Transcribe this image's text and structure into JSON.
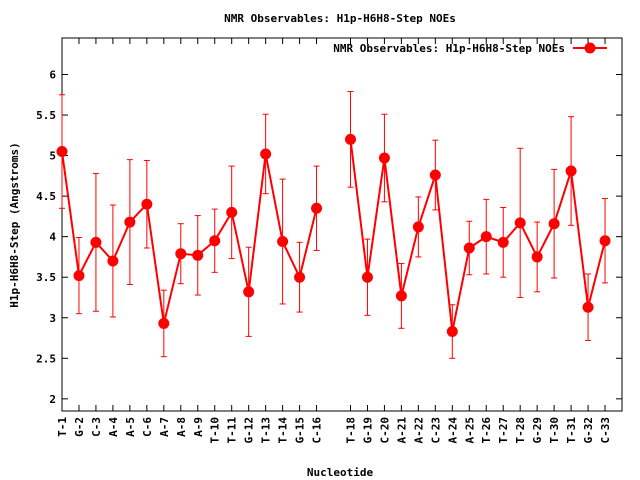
{
  "chart_data": {
    "type": "line",
    "title": "NMR Observables: H1p-H6H8-Step NOEs",
    "xlabel": "Nucleotide",
    "ylabel": "H1p-H6H8-Step (Angstroms)",
    "ylim": [
      1.85,
      6.45
    ],
    "yticks": [
      2,
      2.5,
      3,
      3.5,
      4,
      4.5,
      5,
      5.5,
      6
    ],
    "ytick_labels": [
      "2",
      "2.5",
      "3",
      "3.5",
      "4",
      "4.5",
      "5",
      "5.5",
      "6"
    ],
    "xlim": [
      1,
      34
    ],
    "grid": false,
    "legend_position": "top-right",
    "series_color": "#ff0000",
    "series": [
      {
        "name": "NMR Observables: H1p-H6H8-Step NOEs",
        "segments": [
          [
            {
              "x": 1,
              "label": "T-1",
              "y": 5.05,
              "err": 0.7
            },
            {
              "x": 2,
              "label": "G-2",
              "y": 3.52,
              "err": 0.47
            },
            {
              "x": 3,
              "label": "C-3",
              "y": 3.93,
              "err": 0.85
            },
            {
              "x": 4,
              "label": "A-4",
              "y": 3.7,
              "err": 0.69
            },
            {
              "x": 5,
              "label": "A-5",
              "y": 4.18,
              "err": 0.77
            },
            {
              "x": 6,
              "label": "C-6",
              "y": 4.4,
              "err": 0.54
            },
            {
              "x": 7,
              "label": "A-7",
              "y": 2.93,
              "err": 0.41
            },
            {
              "x": 8,
              "label": "A-8",
              "y": 3.79,
              "err": 0.37
            },
            {
              "x": 9,
              "label": "A-9",
              "y": 3.77,
              "err": 0.49
            },
            {
              "x": 10,
              "label": "T-10",
              "y": 3.95,
              "err": 0.39
            },
            {
              "x": 11,
              "label": "T-11",
              "y": 4.3,
              "err": 0.57
            },
            {
              "x": 12,
              "label": "G-12",
              "y": 3.32,
              "err": 0.55
            },
            {
              "x": 13,
              "label": "T-13",
              "y": 5.02,
              "err": 0.49
            },
            {
              "x": 14,
              "label": "T-14",
              "y": 3.94,
              "err": 0.77
            },
            {
              "x": 15,
              "label": "G-15",
              "y": 3.5,
              "err": 0.43
            },
            {
              "x": 16,
              "label": "C-16",
              "y": 4.35,
              "err": 0.52
            }
          ],
          [
            {
              "x": 18,
              "label": "T-18",
              "y": 5.2,
              "err": 0.59
            },
            {
              "x": 19,
              "label": "G-19",
              "y": 3.5,
              "err": 0.47
            },
            {
              "x": 20,
              "label": "C-20",
              "y": 4.97,
              "err": 0.54
            },
            {
              "x": 21,
              "label": "A-21",
              "y": 3.27,
              "err": 0.4
            },
            {
              "x": 22,
              "label": "A-22",
              "y": 4.12,
              "err": 0.37
            },
            {
              "x": 23,
              "label": "C-23",
              "y": 4.76,
              "err": 0.43
            },
            {
              "x": 24,
              "label": "A-24",
              "y": 2.83,
              "err": 0.33
            },
            {
              "x": 25,
              "label": "A-25",
              "y": 3.86,
              "err": 0.33
            },
            {
              "x": 26,
              "label": "T-26",
              "y": 4.0,
              "err": 0.46
            },
            {
              "x": 27,
              "label": "T-27",
              "y": 3.93,
              "err": 0.43
            },
            {
              "x": 28,
              "label": "T-28",
              "y": 4.17,
              "err": 0.92
            },
            {
              "x": 29,
              "label": "G-29",
              "y": 3.75,
              "err": 0.43
            },
            {
              "x": 30,
              "label": "T-30",
              "y": 4.16,
              "err": 0.67
            },
            {
              "x": 31,
              "label": "T-31",
              "y": 4.81,
              "err": 0.67
            },
            {
              "x": 32,
              "label": "G-32",
              "y": 3.13,
              "err": 0.41
            },
            {
              "x": 33,
              "label": "C-33",
              "y": 3.95,
              "err": 0.52
            }
          ]
        ]
      }
    ]
  }
}
